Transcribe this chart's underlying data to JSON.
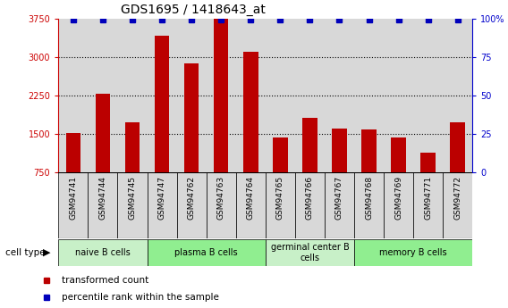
{
  "title": "GDS1695 / 1418643_at",
  "samples": [
    "GSM94741",
    "GSM94744",
    "GSM94745",
    "GSM94747",
    "GSM94762",
    "GSM94763",
    "GSM94764",
    "GSM94765",
    "GSM94766",
    "GSM94767",
    "GSM94768",
    "GSM94769",
    "GSM94771",
    "GSM94772"
  ],
  "transformed_counts": [
    1520,
    2280,
    1720,
    3420,
    2880,
    3750,
    3100,
    1430,
    1820,
    1600,
    1580,
    1430,
    1140,
    1720
  ],
  "cell_types": [
    {
      "label": "naive B cells",
      "start": 0,
      "end": 3,
      "color": "#c8f0c8"
    },
    {
      "label": "plasma B cells",
      "start": 3,
      "end": 7,
      "color": "#90ee90"
    },
    {
      "label": "germinal center B\ncells",
      "start": 7,
      "end": 10,
      "color": "#c8f0c8"
    },
    {
      "label": "memory B cells",
      "start": 10,
      "end": 14,
      "color": "#90ee90"
    }
  ],
  "ymin": 750,
  "ymax": 3750,
  "yticks_left": [
    750,
    1500,
    2250,
    3000,
    3750
  ],
  "yticks_right": [
    0,
    25,
    50,
    75,
    100
  ],
  "bar_color": "#bb0000",
  "dot_color": "#0000bb",
  "label_color_left": "#cc0000",
  "label_color_right": "#0000cc",
  "cell_type_label": "cell type",
  "legend_bar": "transformed count",
  "legend_dot": "percentile rank within the sample",
  "sample_box_color": "#d8d8d8",
  "tick_fontsize": 7,
  "label_fontsize": 7,
  "title_fontsize": 10
}
